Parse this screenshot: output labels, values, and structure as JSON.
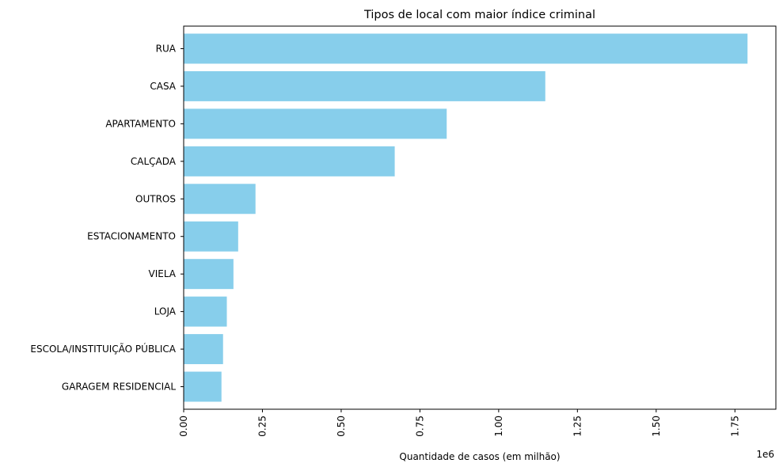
{
  "chart_data": {
    "type": "bar",
    "orientation": "horizontal",
    "title": "Tipos de local com maior índice criminal",
    "xlabel": "Quantidade de casos (em milhão)",
    "ylabel": "",
    "offset_text": "1e6",
    "categories": [
      "RUA",
      "CASA",
      "APARTAMENTO",
      "CALÇADA",
      "OUTROS",
      "ESTACIONAMENTO",
      "VIELA",
      "LOJA",
      "ESCOLA/INSTITUIÇÃO PÚBLICA",
      "GARAGEM RESIDENCIAL"
    ],
    "values": [
      1790000,
      1148000,
      835000,
      670000,
      228000,
      173000,
      158000,
      137000,
      125000,
      120000
    ],
    "xlim": [
      0,
      1880000
    ],
    "xticks": [
      0,
      250000,
      500000,
      750000,
      1000000,
      1250000,
      1500000,
      1750000
    ],
    "xtick_labels": [
      "0.00",
      "0.25",
      "0.50",
      "0.75",
      "1.00",
      "1.25",
      "1.50",
      "1.75"
    ],
    "xtick_rotation": "vertical",
    "bar_color": "#87ceeb",
    "grid": false,
    "legend": "none"
  }
}
